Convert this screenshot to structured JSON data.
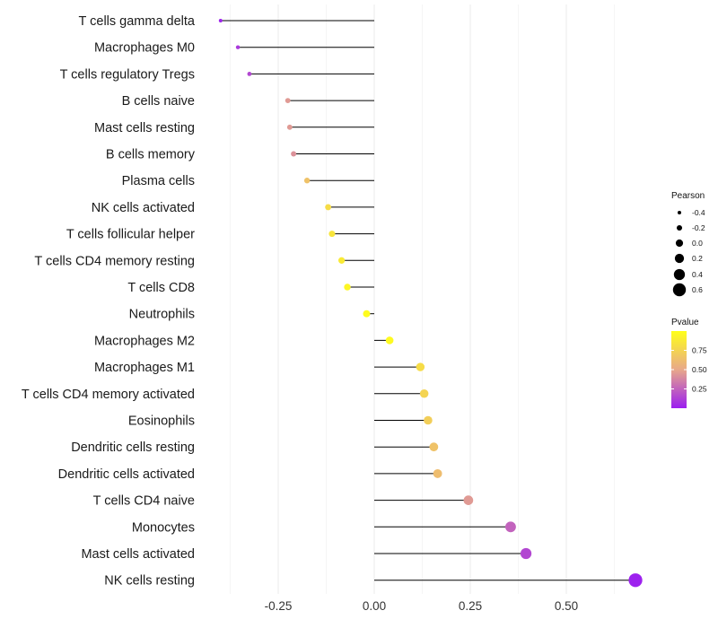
{
  "chart_data": {
    "type": "lollipop",
    "title": "",
    "xlabel": "",
    "ylabel": "",
    "xlim": [
      -0.4,
      0.68
    ],
    "x_ticks": [
      -0.25,
      0.0,
      0.25,
      0.5
    ],
    "x_tick_labels": [
      "-0.25",
      "0.00",
      "0.25",
      "0.50"
    ],
    "grid": true,
    "categories": [
      "T cells gamma delta",
      "Macrophages M0",
      "T cells regulatory  Tregs",
      "B cells naive",
      "Mast cells resting",
      "B cells memory",
      "Plasma cells",
      "NK cells activated",
      "T cells follicular helper",
      "T cells CD4 memory resting",
      "T cells CD8",
      "Neutrophils",
      "Macrophages M2",
      "Macrophages M1",
      "T cells CD4 memory activated",
      "Eosinophils",
      "Dendritic cells resting",
      "Dendritic cells activated",
      "T cells CD4 naive",
      "Monocytes",
      "Mast cells activated",
      "NK cells resting"
    ],
    "values": [
      -0.4,
      -0.355,
      -0.325,
      -0.225,
      -0.22,
      -0.21,
      -0.175,
      -0.12,
      -0.11,
      -0.085,
      -0.07,
      -0.02,
      0.04,
      0.12,
      0.13,
      0.14,
      0.155,
      0.165,
      0.245,
      0.355,
      0.395,
      0.68
    ],
    "pvalues": [
      0.02,
      0.1,
      0.15,
      0.45,
      0.45,
      0.42,
      0.65,
      0.8,
      0.85,
      0.88,
      0.95,
      0.98,
      0.97,
      0.8,
      0.75,
      0.72,
      0.65,
      0.62,
      0.45,
      0.25,
      0.15,
      0.01
    ],
    "legend_size": {
      "title": "Pearson",
      "position": "right",
      "values": [
        -0.4,
        -0.2,
        0.0,
        0.2,
        0.4,
        0.6
      ],
      "labels": [
        "-0.4",
        "-0.2",
        "0.0",
        "0.2",
        "0.4",
        "0.6"
      ]
    },
    "legend_color": {
      "title": "Pvalue",
      "position": "right",
      "ticks": [
        0.75,
        0.5,
        0.25
      ],
      "tick_labels": [
        "0.75",
        "0.50",
        "0.25"
      ],
      "color_low": "#9b1ef0",
      "color_mid": "#e8a88a",
      "color_high": "#ffff1a"
    }
  }
}
